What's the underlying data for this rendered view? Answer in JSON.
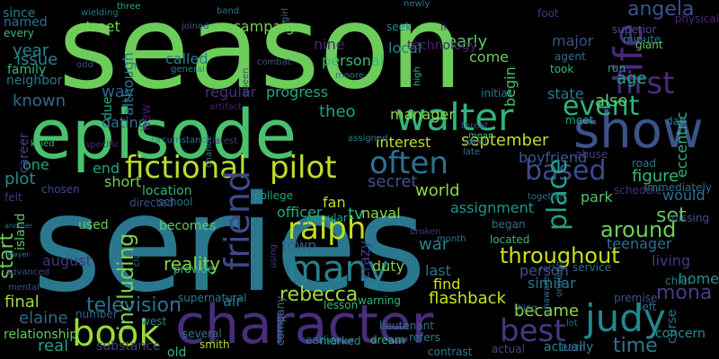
{
  "background": "#000000",
  "palette": [
    "#6ccd5a",
    "#41be71",
    "#2e6f8e",
    "#3b528b",
    "#482878",
    "#440154",
    "#fde725",
    "#1f9e89",
    "#b5de2b",
    "#26828e"
  ],
  "words": [
    {
      "text": "season",
      "color": "#6ccd5a"
    },
    {
      "text": "series",
      "color": "#2a788e"
    },
    {
      "text": "episode",
      "color": "#4ac16d"
    },
    {
      "text": "character",
      "color": "#472d7b"
    },
    {
      "text": "show",
      "color": "#3b528b"
    },
    {
      "text": "walter",
      "color": "#2fb47c"
    },
    {
      "text": "life",
      "color": "#482878"
    },
    {
      "text": "first",
      "color": "#472c7a"
    },
    {
      "text": "fictional",
      "color": "#b5de2b"
    },
    {
      "text": "pilot",
      "color": "#bddf26"
    },
    {
      "text": "often",
      "color": "#2c728e"
    },
    {
      "text": "ralph",
      "color": "#c2df23"
    },
    {
      "text": "many",
      "color": "#26818e"
    },
    {
      "text": "judy",
      "color": "#23888e"
    },
    {
      "text": "book",
      "color": "#9bd93c"
    },
    {
      "text": "friend",
      "color": "#3e4989"
    },
    {
      "text": "best",
      "color": "#443983"
    },
    {
      "text": "event",
      "color": "#2db27d"
    },
    {
      "text": "based",
      "color": "#3e4a89"
    },
    {
      "text": "throughout",
      "color": "#c8e020"
    },
    {
      "text": "rebecca",
      "color": "#a0da39"
    },
    {
      "text": "angela",
      "color": "#3b528b"
    },
    {
      "text": "mona",
      "color": "#433e85"
    },
    {
      "text": "around",
      "color": "#6ece58"
    },
    {
      "text": "place",
      "color": "#20a386"
    },
    {
      "text": "including",
      "color": "#7ad151"
    },
    {
      "text": "television",
      "color": "#2c728e"
    },
    {
      "text": "reality",
      "color": "#84d44b"
    },
    {
      "text": "time",
      "color": "#2a788e"
    },
    {
      "text": "also",
      "color": "#5ec962"
    },
    {
      "text": "set",
      "color": "#5ec962"
    },
    {
      "text": "age",
      "color": "#22a884"
    },
    {
      "text": "war",
      "color": "#25848e"
    },
    {
      "text": "world",
      "color": "#90d743"
    },
    {
      "text": "september",
      "color": "#bddf26"
    },
    {
      "text": "figure",
      "color": "#35b779"
    },
    {
      "text": "elaine",
      "color": "#31688e"
    },
    {
      "text": "real",
      "color": "#1f9e89"
    },
    {
      "text": "tv",
      "color": "#2fb47c"
    },
    {
      "text": "theo",
      "color": "#1fa088"
    },
    {
      "text": "flashback",
      "color": "#cae11f"
    },
    {
      "text": "became",
      "color": "#8fd744"
    },
    {
      "text": "early",
      "color": "#5ec962"
    },
    {
      "text": "secret",
      "color": "#3b528b"
    },
    {
      "text": "town",
      "color": "#35608d"
    },
    {
      "text": "nine",
      "color": "#482878"
    },
    {
      "text": "manager",
      "color": "#8fd744"
    },
    {
      "text": "end",
      "color": "#1fa188"
    },
    {
      "text": "short",
      "color": "#75d054"
    },
    {
      "text": "one",
      "color": "#20a386"
    },
    {
      "text": "plot",
      "color": "#23898e"
    },
    {
      "text": "start",
      "color": "#6ccd5a"
    },
    {
      "text": "final",
      "color": "#9dd93b"
    },
    {
      "text": "year",
      "color": "#25848e"
    },
    {
      "text": "issue",
      "color": "#25848e"
    },
    {
      "text": "known",
      "color": "#31688e"
    },
    {
      "text": "way",
      "color": "#34618d"
    },
    {
      "text": "dating",
      "color": "#2d718e"
    },
    {
      "text": "regular",
      "color": "#472f7d"
    },
    {
      "text": "progress",
      "color": "#22a884"
    },
    {
      "text": "campaign",
      "color": "#75d054"
    },
    {
      "text": "called",
      "color": "#297b8e"
    },
    {
      "text": "although",
      "color": "#2a788e"
    },
    {
      "text": "street",
      "color": "#7ad151"
    },
    {
      "text": "personal",
      "color": "#38b977"
    },
    {
      "text": "come",
      "color": "#6ccd5a"
    },
    {
      "text": "local",
      "color": "#26818e"
    },
    {
      "text": "interest",
      "color": "#c0df25"
    },
    {
      "text": "assignment",
      "color": "#1f958b"
    },
    {
      "text": "officer",
      "color": "#25ab82"
    },
    {
      "text": "fan",
      "color": "#c2df23"
    },
    {
      "text": "naval",
      "color": "#90d743"
    },
    {
      "text": "duty",
      "color": "#7ad151"
    },
    {
      "text": "crazy",
      "color": "#433e85"
    },
    {
      "text": "last",
      "color": "#2c728e"
    },
    {
      "text": "find",
      "color": "#d2e21b"
    },
    {
      "text": "similar",
      "color": "#2a788e"
    },
    {
      "text": "person",
      "color": "#3b528b"
    },
    {
      "text": "park",
      "color": "#52c569"
    },
    {
      "text": "would",
      "color": "#2c728e"
    },
    {
      "text": "living",
      "color": "#453882"
    },
    {
      "text": "home",
      "color": "#21918c"
    },
    {
      "text": "teenager",
      "color": "#2d708e"
    },
    {
      "text": "state",
      "color": "#2a788e"
    },
    {
      "text": "major",
      "color": "#3b528b"
    },
    {
      "text": "begin",
      "color": "#48c16e"
    },
    {
      "text": "eccentric",
      "color": "#2fb47c"
    },
    {
      "text": "boyfriend",
      "color": "#38598c"
    },
    {
      "text": "air",
      "color": "#2a788e"
    },
    {
      "text": "location",
      "color": "#2fb47c"
    },
    {
      "text": "becomes",
      "color": "#5ec962"
    },
    {
      "text": "used",
      "color": "#6ccd5a"
    },
    {
      "text": "due",
      "color": "#22a884"
    },
    {
      "text": "new",
      "color": "#48186a"
    },
    {
      "text": "august",
      "color": "#46337f"
    },
    {
      "text": "island",
      "color": "#5ec962"
    },
    {
      "text": "career",
      "color": "#3f4788"
    },
    {
      "text": "neighbor",
      "color": "#2a788e"
    },
    {
      "text": "family",
      "color": "#35b779"
    },
    {
      "text": "since",
      "color": "#287c8e"
    },
    {
      "text": "named",
      "color": "#2d718e"
    },
    {
      "text": "every",
      "color": "#35b779"
    },
    {
      "text": "substance",
      "color": "#433e85"
    },
    {
      "text": "relationship",
      "color": "#63cb5f"
    },
    {
      "text": "number",
      "color": "#31688e"
    },
    {
      "text": "technology",
      "color": "#482173"
    },
    {
      "text": "ii",
      "color": "#3e4989"
    },
    {
      "text": "seek",
      "color": "#26828e"
    },
    {
      "text": "initial",
      "color": "#2a788e"
    },
    {
      "text": "meet",
      "color": "#22a884"
    },
    {
      "text": "took",
      "color": "#35b779"
    },
    {
      "text": "agent",
      "color": "#2d708e"
    },
    {
      "text": "minute",
      "color": "#2c728e"
    },
    {
      "text": "giant",
      "color": "#5ec962"
    },
    {
      "text": "superior",
      "color": "#3b528b"
    },
    {
      "text": "physical",
      "color": "#482576"
    },
    {
      "text": "foot",
      "color": "#44397f"
    },
    {
      "text": "run",
      "color": "#1f9e89"
    },
    {
      "text": "day",
      "color": "#2a788e"
    },
    {
      "text": "road",
      "color": "#2a788e"
    },
    {
      "text": "abuse",
      "color": "#433e85"
    },
    {
      "text": "schedule",
      "color": "#46337f"
    },
    {
      "text": "immediately",
      "color": "#2c728e"
    },
    {
      "text": "missing",
      "color": "#3b528b"
    },
    {
      "text": "service",
      "color": "#2d718e"
    },
    {
      "text": "chief",
      "color": "#2a788e"
    },
    {
      "text": "curse",
      "color": "#2c728e"
    },
    {
      "text": "left",
      "color": "#2a788e"
    },
    {
      "text": "premise",
      "color": "#3b528b"
    },
    {
      "text": "concern",
      "color": "#21918c"
    },
    {
      "text": "actually",
      "color": "#26828e"
    },
    {
      "text": "learn",
      "color": "#3b528b"
    },
    {
      "text": "actual",
      "color": "#3e4989"
    },
    {
      "text": "contrast",
      "color": "#2a788e"
    },
    {
      "text": "refers",
      "color": "#2a788e"
    },
    {
      "text": "dream",
      "color": "#35b779"
    },
    {
      "text": "marked",
      "color": "#21918c"
    },
    {
      "text": "earlier",
      "color": "#26828e"
    },
    {
      "text": "several",
      "color": "#2a788e"
    },
    {
      "text": "old",
      "color": "#35b779"
    },
    {
      "text": "smith",
      "color": "#b5de2b"
    },
    {
      "text": "west",
      "color": "#25848e"
    },
    {
      "text": "supernatural",
      "color": "#2a788e"
    },
    {
      "text": "provide",
      "color": "#35b779"
    },
    {
      "text": "lesson",
      "color": "#35b779"
    },
    {
      "text": "warning",
      "color": "#2fb47c"
    },
    {
      "text": "lieutenant",
      "color": "#2d708e"
    },
    {
      "text": "company",
      "color": "#2a788e"
    },
    {
      "text": "began",
      "color": "#2c728e"
    },
    {
      "text": "located",
      "color": "#35b779"
    },
    {
      "text": "popular",
      "color": "#22a884"
    },
    {
      "text": "college",
      "color": "#20a386"
    },
    {
      "text": "school",
      "color": "#2c728e"
    },
    {
      "text": "directed",
      "color": "#3b528b"
    },
    {
      "text": "chosen",
      "color": "#3e4989"
    },
    {
      "text": "felt",
      "color": "#443983"
    },
    {
      "text": "another",
      "color": "#2c728e"
    },
    {
      "text": "lawyer",
      "color": "#2a788e"
    },
    {
      "text": "advanced",
      "color": "#3e4989"
    },
    {
      "text": "mental",
      "color": "#3b528b"
    },
    {
      "text": "using",
      "color": "#453882"
    },
    {
      "text": "clue",
      "color": "#2a788e"
    },
    {
      "text": "circumstance",
      "color": "#2a788e"
    },
    {
      "text": "specific",
      "color": "#482878"
    },
    {
      "text": "killed",
      "color": "#35b779"
    },
    {
      "text": "latest",
      "color": "#46337f"
    },
    {
      "text": "artifact",
      "color": "#482173"
    },
    {
      "text": "chance",
      "color": "#2a788e"
    },
    {
      "text": "assigned",
      "color": "#26828e"
    },
    {
      "text": "mean",
      "color": "#35b779"
    },
    {
      "text": "ex",
      "color": "#3e4989"
    },
    {
      "text": "late",
      "color": "#2a788e"
    },
    {
      "text": "threat",
      "color": "#3b528b"
    },
    {
      "text": "thing",
      "color": "#2c728e"
    },
    {
      "text": "lot",
      "color": "#2c728e"
    },
    {
      "text": "unaware",
      "color": "#2a788e"
    },
    {
      "text": "ongoing",
      "color": "#2c728e"
    },
    {
      "text": "rather",
      "color": "#3b528b"
    },
    {
      "text": "broken",
      "color": "#46337f"
    },
    {
      "text": "month",
      "color": "#2a788e"
    },
    {
      "text": "general",
      "color": "#26828e"
    },
    {
      "text": "three",
      "color": "#22a884"
    },
    {
      "text": "band",
      "color": "#2a788e"
    },
    {
      "text": "joined",
      "color": "#3b528b"
    },
    {
      "text": "girl",
      "color": "#2c728e"
    },
    {
      "text": "newly",
      "color": "#2a788e"
    },
    {
      "text": "combat",
      "color": "#3b528b"
    },
    {
      "text": "moore",
      "color": "#2a788e"
    },
    {
      "text": "high",
      "color": "#35b779"
    },
    {
      "text": "wielding",
      "color": "#2a788e"
    },
    {
      "text": "odd",
      "color": "#3b528b"
    },
    {
      "text": "queen",
      "color": "#3e4989"
    },
    {
      "text": "duel",
      "color": "#2a788e"
    },
    {
      "text": "together",
      "color": "#2c728e"
    },
    {
      "text": "lane",
      "color": "#2c728e"
    },
    {
      "text": "obstacle",
      "color": "#46337f"
    }
  ]
}
